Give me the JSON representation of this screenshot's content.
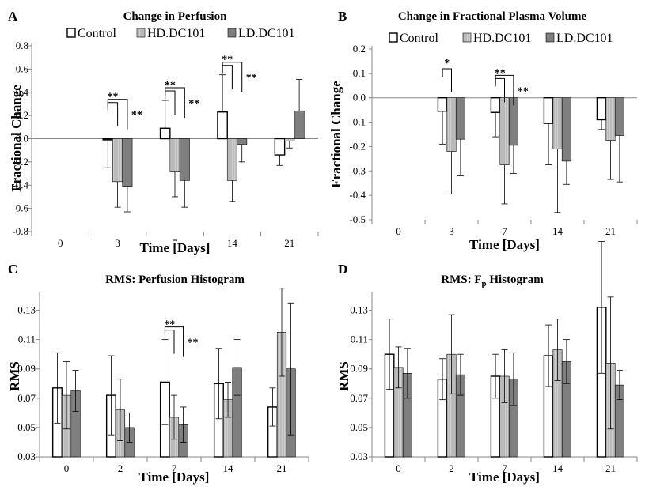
{
  "chart_data": [
    {
      "panel": "A",
      "type": "bar",
      "title": "Change in Perfusion",
      "xlabel": "Time [Days]",
      "ylabel": "Fractional Change",
      "categories": [
        "0",
        "3",
        "7",
        "14",
        "21"
      ],
      "yticks": [
        "0.8",
        "0.6",
        "0.4",
        "0.2",
        "0.0",
        "-0.2",
        "-0.4",
        "-0.6",
        "-0.8"
      ],
      "ylim": [
        -0.8,
        0.8
      ],
      "legend": "top",
      "series": [
        {
          "name": "Control",
          "values": [
            0,
            -0.01,
            0.09,
            0.23,
            -0.14
          ],
          "err": [
            0,
            0.24,
            0.24,
            0.32,
            0.09
          ]
        },
        {
          "name": "HD.DC101",
          "values": [
            0,
            -0.37,
            -0.28,
            -0.36,
            -0.02
          ],
          "err": [
            0,
            0.22,
            0.22,
            0.18,
            0.06
          ]
        },
        {
          "name": "LD.DC101",
          "values": [
            0,
            -0.41,
            -0.36,
            -0.05,
            0.24
          ],
          "err": [
            0,
            0.22,
            0.23,
            0.15,
            0.27
          ]
        }
      ],
      "annotations": [
        {
          "text": "**"
        },
        {
          "text": "**"
        },
        {
          "text": "**"
        },
        {
          "text": "**"
        },
        {
          "text": "**"
        },
        {
          "text": "**"
        }
      ]
    },
    {
      "panel": "B",
      "type": "bar",
      "title": "Change in Fractional Plasma Volume",
      "xlabel": "Time [Days]",
      "ylabel": "Fractional Change",
      "categories": [
        "0",
        "3",
        "7",
        "14",
        "21"
      ],
      "yticks": [
        "0.2",
        "0.1",
        "0.0",
        "-0.1",
        "-0.2",
        "-0.3",
        "-0.4",
        "-0.5"
      ],
      "ylim": [
        -0.5,
        0.2
      ],
      "legend": "top",
      "series": [
        {
          "name": "Control",
          "values": [
            0,
            -0.055,
            -0.06,
            -0.105,
            -0.09
          ],
          "err": [
            0,
            0.135,
            0.1,
            0.17,
            0.04
          ]
        },
        {
          "name": "HD.DC101",
          "values": [
            0,
            -0.22,
            -0.275,
            -0.21,
            -0.175
          ],
          "err": [
            0,
            0.175,
            0.16,
            0.26,
            0.16
          ]
        },
        {
          "name": "LD.DC101",
          "values": [
            0,
            -0.17,
            -0.195,
            -0.26,
            -0.155
          ],
          "err": [
            0,
            0.15,
            0.115,
            0.095,
            0.19
          ]
        }
      ],
      "annotations": [
        {
          "text": "*"
        },
        {
          "text": "**"
        },
        {
          "text": "**"
        }
      ]
    },
    {
      "panel": "C",
      "type": "bar",
      "title": "RMS: Perfusion Histogram",
      "xlabel": "Time [Days]",
      "ylabel": "RMS",
      "categories": [
        "0",
        "2",
        "7",
        "14",
        "21"
      ],
      "yticks": [
        "0.13",
        "0.11",
        "0.09",
        "0.07",
        "0.05",
        "0.03"
      ],
      "ylim": [
        0.03,
        0.14
      ],
      "legend": "none",
      "series": [
        {
          "name": "Control",
          "values": [
            0.077,
            0.072,
            0.081,
            0.08,
            0.064
          ],
          "err": [
            0.024,
            0.027,
            0.029,
            0.024,
            0.013
          ]
        },
        {
          "name": "HD.DC101",
          "values": [
            0.072,
            0.062,
            0.057,
            0.069,
            0.115
          ],
          "err": [
            0.023,
            0.021,
            0.015,
            0.012,
            0.03
          ]
        },
        {
          "name": "LD.DC101",
          "values": [
            0.075,
            0.05,
            0.052,
            0.091,
            0.09
          ],
          "err": [
            0.014,
            0.01,
            0.012,
            0.019,
            0.045
          ]
        }
      ],
      "annotations": [
        {
          "text": "**"
        },
        {
          "text": "**"
        }
      ]
    },
    {
      "panel": "D",
      "type": "bar",
      "title": "RMS: F",
      "title_sub": "p",
      "title_suffix": " Histogram",
      "xlabel": "Time [Days]",
      "ylabel": "RMS",
      "categories": [
        "0",
        "2",
        "7",
        "14",
        "21"
      ],
      "yticks": [
        "0.13",
        "0.11",
        "0.09",
        "0.07",
        "0.05",
        "0.03"
      ],
      "ylim": [
        0.03,
        0.14
      ],
      "legend": "none",
      "series": [
        {
          "name": "Control",
          "values": [
            0.1,
            0.083,
            0.085,
            0.099,
            0.132
          ],
          "err": [
            0.024,
            0.014,
            0.015,
            0.021,
            0.045
          ]
        },
        {
          "name": "HD.DC101",
          "values": [
            0.091,
            0.1,
            0.085,
            0.103,
            0.094
          ],
          "err": [
            0.014,
            0.027,
            0.018,
            0.021,
            0.045
          ]
        },
        {
          "name": "LD.DC101",
          "values": [
            0.087,
            0.086,
            0.083,
            0.095,
            0.079
          ],
          "err": [
            0.017,
            0.014,
            0.018,
            0.015,
            0.01
          ]
        }
      ]
    }
  ],
  "colors": {
    "control": "#ffffff",
    "hd": "#cfcfcf",
    "ld": "#7f7f7f",
    "stroke": "#000000",
    "axis": "#888888",
    "grid": "#bbbbbb"
  }
}
